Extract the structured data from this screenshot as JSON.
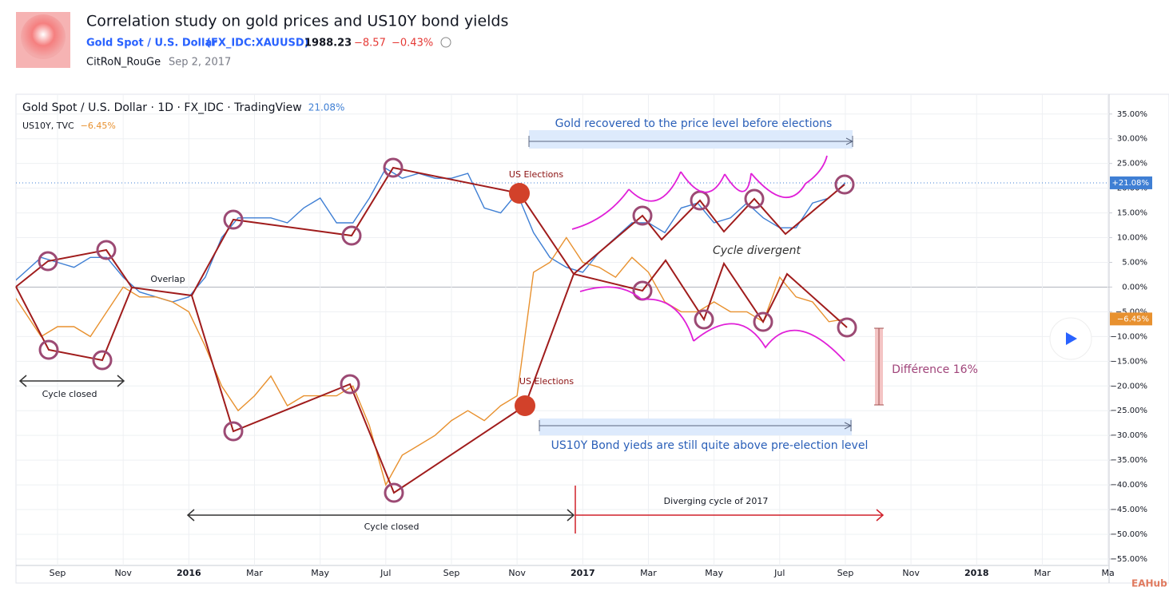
{
  "header": {
    "title": "Correlation study on gold prices and US10Y bond yields",
    "symbol_name": "Gold Spot / U.S. Dollar",
    "symbol_code": "(FX_IDC:XAUUSD)",
    "price": "1988.23",
    "change": "−8.57",
    "change_pct": "−0.43%",
    "author": "CitRoN_RouGe",
    "date": "Sep 2, 2017",
    "watermark": "EAHub"
  },
  "chart_data": {
    "type": "line",
    "categories": [
      null,
      null,
      null,
      "Sep",
      null,
      null,
      null,
      "Nov",
      null,
      null,
      null,
      "2016",
      null,
      null,
      null,
      "Mar",
      null,
      null,
      null,
      "May",
      null,
      null,
      null,
      "Jul",
      null,
      null,
      null,
      "Sep",
      null,
      null,
      null,
      "Nov",
      null,
      null,
      null,
      "2017",
      null,
      null,
      null,
      "Mar",
      null,
      null,
      null,
      "May",
      null,
      null,
      null,
      "Jul",
      null,
      null,
      null,
      "Sep",
      null,
      null,
      null,
      "Nov",
      null,
      null,
      null,
      "2018",
      null,
      null,
      null,
      "Mar",
      null,
      null,
      null,
      "Ma"
    ],
    "series": [
      {
        "name": "Gold Spot / U.S. Dollar · 1D · FX_IDC · TradingView",
        "legend_value": "21.08%",
        "last_label": "+21.08%",
        "color": "#3f7fd4",
        "values": [
          0,
          3,
          6,
          5,
          4,
          6,
          6,
          2,
          -1,
          -2,
          -3,
          -2,
          2,
          10,
          14,
          14,
          14,
          13,
          16,
          18,
          13,
          13,
          18,
          24,
          22,
          23,
          22,
          22,
          23,
          16,
          15,
          19,
          11,
          6,
          4,
          3,
          7,
          10,
          13,
          13,
          11,
          16,
          17,
          13,
          14,
          17,
          14,
          12,
          12,
          17,
          18,
          21.08,
          null,
          null,
          null,
          null,
          null,
          null,
          null,
          null,
          null,
          null,
          null,
          null,
          null,
          null,
          null,
          null
        ]
      },
      {
        "name": "US10Y, TVC",
        "legend_value": "−6.45%",
        "last_label": "−6.45%",
        "color": "#e8912f",
        "values": [
          0,
          -5,
          -10,
          -8,
          -8,
          -10,
          -5,
          0,
          -2,
          -2,
          -3,
          -5,
          -12,
          -20,
          -25,
          -22,
          -18,
          -24,
          -22,
          -22,
          -22,
          -20,
          -28,
          -40,
          -34,
          -32,
          -30,
          -27,
          -25,
          -27,
          -24,
          -22,
          3,
          5,
          10,
          5,
          4,
          2,
          6,
          3,
          -3,
          -5,
          -5,
          -3,
          -5,
          -5,
          -7,
          2,
          -2,
          -3,
          -7,
          -6.45,
          null,
          null,
          null,
          null,
          null,
          null,
          null,
          null,
          null,
          null,
          null,
          null,
          null,
          null,
          null,
          null
        ]
      }
    ],
    "ylim": [
      -56.3,
      39
    ],
    "yticks": [
      {
        "value": -55,
        "label": "−55.00%"
      },
      {
        "value": -50,
        "label": "−50.00%"
      },
      {
        "value": -45,
        "label": "−45.00%"
      },
      {
        "value": -40,
        "label": "−40.00%"
      },
      {
        "value": -35,
        "label": "−35.00%"
      },
      {
        "value": -30,
        "label": "−30.00%"
      },
      {
        "value": -25,
        "label": "−25.00%"
      },
      {
        "value": -20,
        "label": "−20.00%"
      },
      {
        "value": -15,
        "label": "−15.00%"
      },
      {
        "value": -10,
        "label": "−10.00%"
      },
      {
        "value": -5,
        "label": "−5.00%"
      },
      {
        "value": 0,
        "label": "0.00%"
      },
      {
        "value": 5,
        "label": "5.00%"
      },
      {
        "value": 10,
        "label": "10.00%"
      },
      {
        "value": 15,
        "label": "15.00%"
      },
      {
        "value": 20,
        "label": "20.00%"
      },
      {
        "value": 25,
        "label": "25.00%"
      },
      {
        "value": 30,
        "label": "30.00%"
      },
      {
        "value": 35,
        "label": "35.00%"
      }
    ],
    "grid": true,
    "annotations": [
      "Gold recovered to the price level before elections",
      "US Elections",
      "US Elections",
      "Overlap",
      "Cycle closed",
      "Cycle closed",
      "Cycle divergent",
      "Différence 16%",
      "US10Y Bond yieds are still quite above pre-election level",
      "Diverging cycle of 2017"
    ]
  }
}
